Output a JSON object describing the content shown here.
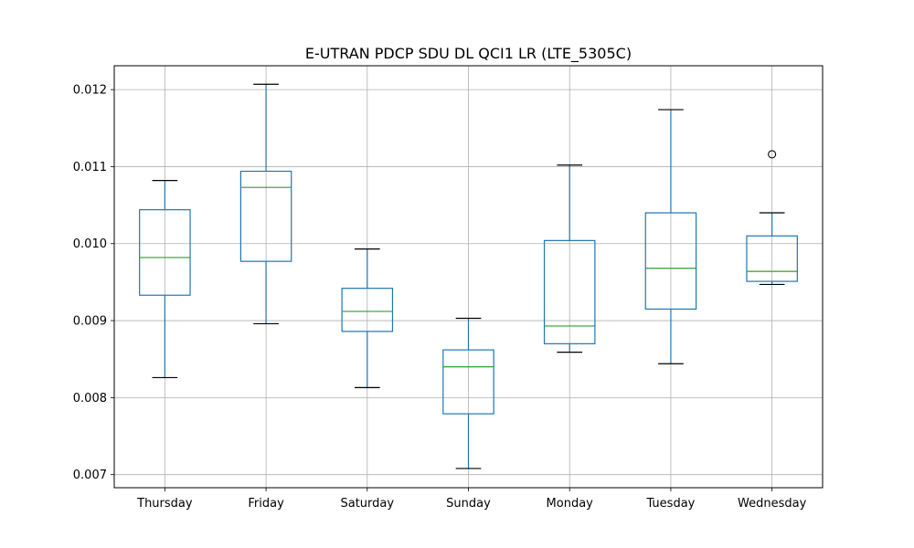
{
  "chart_data": {
    "type": "box",
    "title": "E-UTRAN PDCP SDU DL QCI1 LR (LTE_5305C)",
    "xlabel": "",
    "ylabel": "",
    "categories": [
      "Thursday",
      "Friday",
      "Saturday",
      "Sunday",
      "Monday",
      "Tuesday",
      "Wednesday"
    ],
    "boxes": [
      {
        "category": "Thursday",
        "whisker_low": 0.00826,
        "q1": 0.00933,
        "median": 0.00982,
        "q3": 0.01044,
        "whisker_high": 0.01082,
        "outliers": []
      },
      {
        "category": "Friday",
        "whisker_low": 0.00896,
        "q1": 0.00977,
        "median": 0.01073,
        "q3": 0.01094,
        "whisker_high": 0.01207,
        "outliers": []
      },
      {
        "category": "Saturday",
        "whisker_low": 0.00813,
        "q1": 0.00886,
        "median": 0.00912,
        "q3": 0.00942,
        "whisker_high": 0.00993,
        "outliers": []
      },
      {
        "category": "Sunday",
        "whisker_low": 0.00708,
        "q1": 0.00779,
        "median": 0.0084,
        "q3": 0.00862,
        "whisker_high": 0.00903,
        "outliers": []
      },
      {
        "category": "Monday",
        "whisker_low": 0.00859,
        "q1": 0.0087,
        "median": 0.00893,
        "q3": 0.01004,
        "whisker_high": 0.01102,
        "outliers": []
      },
      {
        "category": "Tuesday",
        "whisker_low": 0.00844,
        "q1": 0.00915,
        "median": 0.00968,
        "q3": 0.0104,
        "whisker_high": 0.01174,
        "outliers": []
      },
      {
        "category": "Wednesday",
        "whisker_low": 0.00947,
        "q1": 0.00951,
        "median": 0.00964,
        "q3": 0.0101,
        "whisker_high": 0.0104,
        "outliers": [
          0.01116
        ]
      }
    ],
    "ylim": [
      0.00683,
      0.01231
    ],
    "yticks": [
      0.007,
      0.008,
      0.009,
      0.01,
      0.011,
      0.012
    ],
    "ytick_labels": [
      "0.007",
      "0.008",
      "0.009",
      "0.010",
      "0.011",
      "0.012"
    ],
    "grid": true,
    "colors": {
      "box": "#1f77b4",
      "median": "#2ca02c",
      "cap": "#000000",
      "grid": "#b0b0b0"
    }
  }
}
